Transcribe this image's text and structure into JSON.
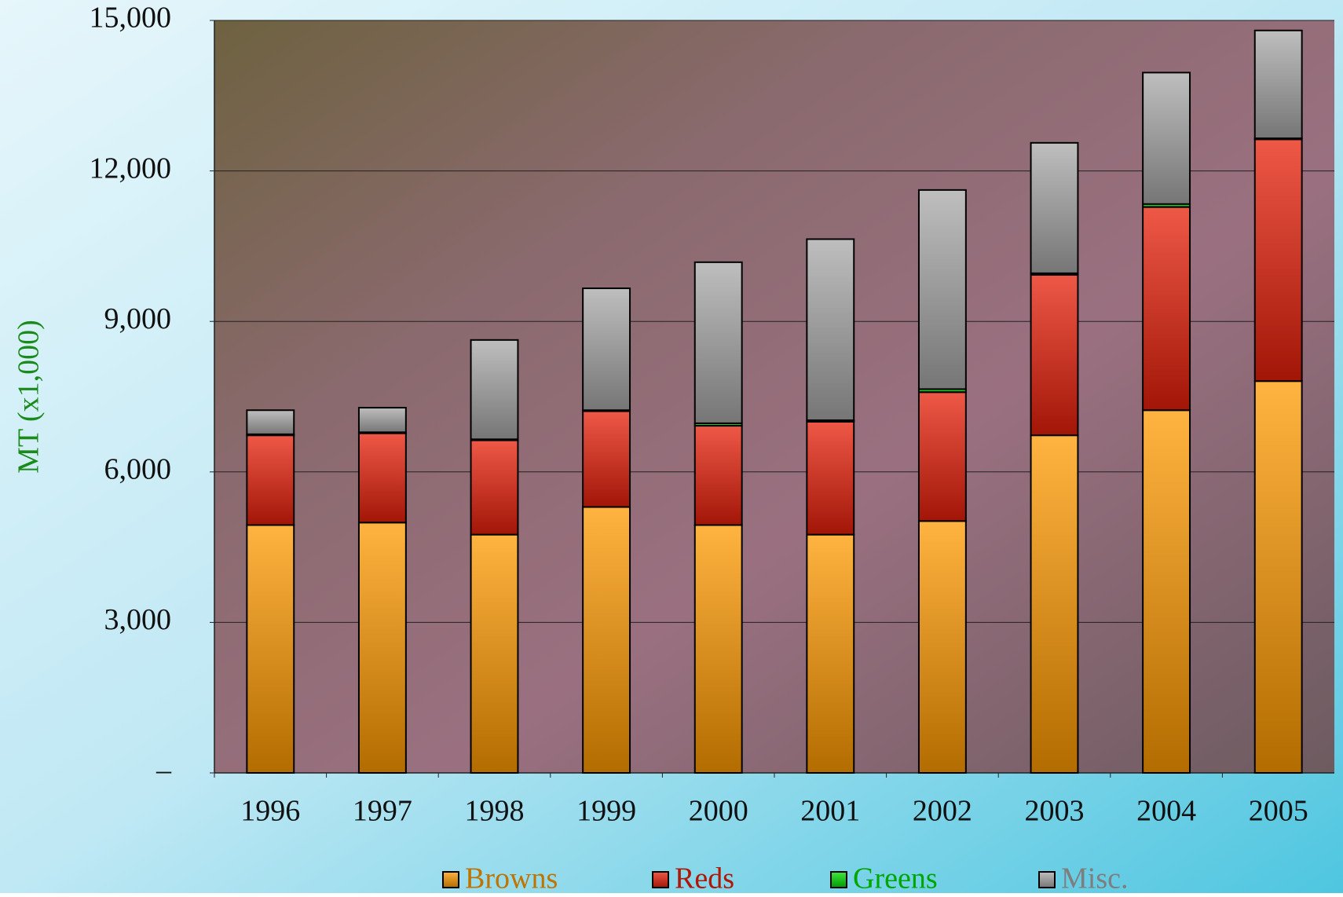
{
  "chart_data": {
    "type": "stacked-bar",
    "y_label": "MT (x1,000)",
    "categories": [
      "1996",
      "1997",
      "1998",
      "1999",
      "2000",
      "2001",
      "2002",
      "2003",
      "2004",
      "2005"
    ],
    "series": [
      {
        "name": "Browns",
        "color": "#ff9a00",
        "values": [
          4940,
          4990,
          4750,
          5300,
          4940,
          4750,
          5020,
          6730,
          7230,
          7810
        ]
      },
      {
        "name": "Reds",
        "color": "#e8200a",
        "values": [
          1790,
          1780,
          1880,
          1910,
          1980,
          2250,
          2570,
          3200,
          4050,
          4820
        ]
      },
      {
        "name": "Greens",
        "color": "#00dd00",
        "values": [
          20,
          20,
          20,
          20,
          50,
          30,
          60,
          30,
          60,
          20
        ]
      },
      {
        "name": "Misc.",
        "color": "#a8a8a8",
        "values": [
          480,
          490,
          1980,
          2430,
          3210,
          3610,
          3970,
          2600,
          2620,
          2150
        ]
      }
    ],
    "ylim": [
      0,
      15000
    ],
    "yticks": [
      {
        "value": 0,
        "label": "–"
      },
      {
        "value": 3000,
        "label": "3,000"
      },
      {
        "value": 6000,
        "label": "6,000"
      },
      {
        "value": 9000,
        "label": "9,000"
      },
      {
        "value": 12000,
        "label": "12,000"
      },
      {
        "value": 15000,
        "label": "15,000"
      }
    ],
    "grid": true
  }
}
